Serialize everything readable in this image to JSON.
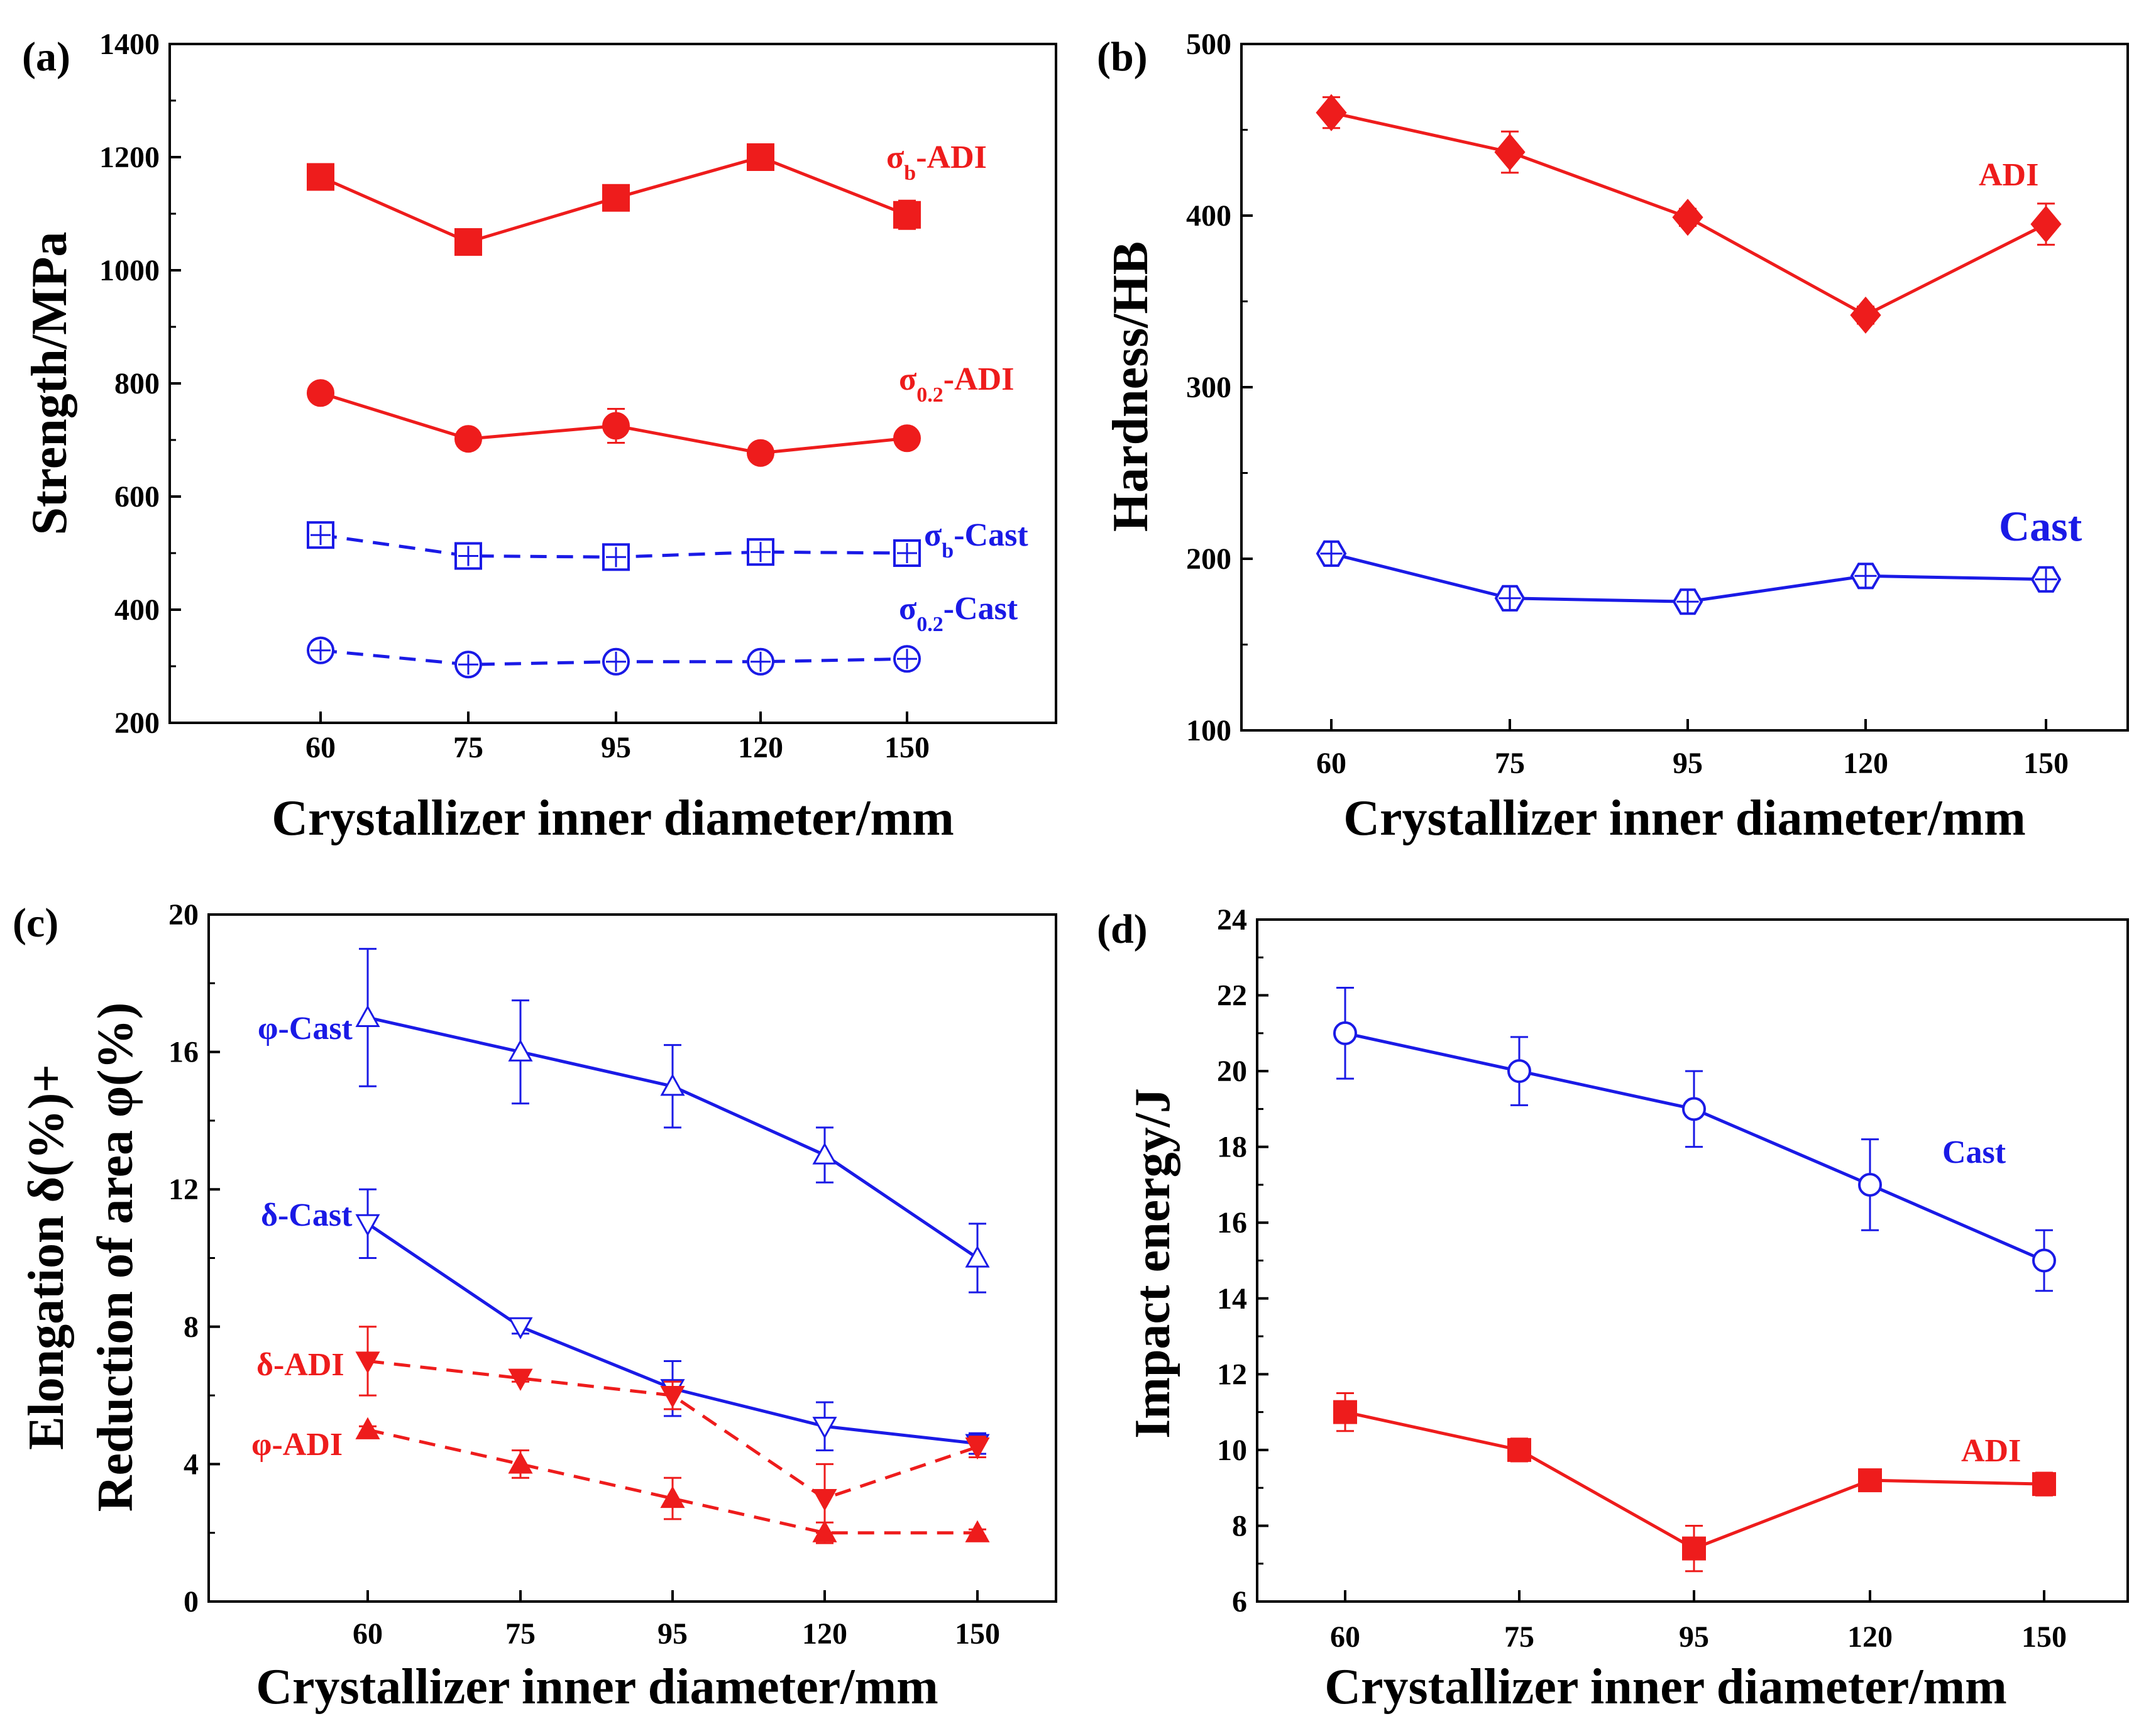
{
  "colors": {
    "adi": "#ee1c1c",
    "cast": "#1a1ae6",
    "axis": "#000000"
  },
  "chart_data": [
    {
      "panel_label": "(a)",
      "type": "line",
      "categories": [
        "60",
        "75",
        "95",
        "120",
        "150"
      ],
      "xlabel": "Crystallizer inner diameter/mm",
      "ylabel": "Strength/MPa",
      "ylim": [
        200,
        1400
      ],
      "yticks": [
        "200",
        "400",
        "600",
        "800",
        "1000",
        "1200",
        "1400"
      ],
      "series": [
        {
          "label": "σb-ADI",
          "main": "σ",
          "sub": "b",
          "suffix": "-ADI",
          "material": "adi",
          "marker": "square-filled",
          "dash": false,
          "values": [
            1165,
            1050,
            1128,
            1200,
            1098
          ],
          "errors": [
            15,
            15,
            15,
            20,
            25
          ]
        },
        {
          "label": "σ0.2-ADI",
          "main": "σ",
          "sub": "0.2",
          "suffix": "-ADI",
          "material": "adi",
          "marker": "circle-filled",
          "dash": false,
          "values": [
            783,
            702,
            725,
            677,
            703
          ],
          "errors": [
            12,
            15,
            30,
            10,
            10
          ]
        },
        {
          "label": "σb-Cast",
          "main": "σ",
          "sub": "b",
          "suffix": "-Cast",
          "material": "cast",
          "marker": "square-plus",
          "dash": true,
          "values": [
            532,
            495,
            493,
            502,
            500
          ],
          "errors": [
            0,
            0,
            0,
            0,
            0
          ]
        },
        {
          "label": "σ0.2-Cast",
          "main": "σ",
          "sub": "0.2",
          "suffix": "-Cast",
          "material": "cast",
          "marker": "circle-plus",
          "dash": true,
          "values": [
            328,
            303,
            308,
            308,
            313
          ],
          "errors": [
            0,
            0,
            0,
            0,
            0
          ]
        }
      ]
    },
    {
      "panel_label": "(b)",
      "type": "line",
      "categories": [
        "60",
        "75",
        "95",
        "120",
        "150"
      ],
      "xlabel": "Crystallizer inner diameter/mm",
      "ylabel": "Hardness/HB",
      "ylim": [
        100,
        500
      ],
      "yticks": [
        "100",
        "200",
        "300",
        "400",
        "500"
      ],
      "series": [
        {
          "label": "ADI",
          "main": "ADI",
          "sub": "",
          "suffix": "",
          "material": "adi",
          "marker": "diamond-filled",
          "dash": false,
          "values": [
            460,
            437,
            399,
            342,
            395
          ],
          "errors": [
            9,
            12,
            5,
            5,
            12
          ]
        },
        {
          "label": "Cast",
          "main": "Cast",
          "sub": "",
          "suffix": "",
          "material": "cast",
          "marker": "hexagon-plus",
          "dash": false,
          "values": [
            203,
            177,
            175,
            190,
            188
          ],
          "errors": [
            6,
            5,
            5,
            5,
            5
          ]
        }
      ]
    },
    {
      "panel_label": "(c)",
      "type": "line",
      "categories": [
        "60",
        "75",
        "95",
        "120",
        "150"
      ],
      "xlabel": "Crystallizer inner diameter/mm",
      "ylabel": "Elongation δ(%)+",
      "ylabel2": "Reduction of area φ(%)",
      "ylim": [
        0,
        20
      ],
      "yticks": [
        "0",
        "4",
        "8",
        "12",
        "16",
        "20"
      ],
      "series": [
        {
          "label": "φ-Cast",
          "main": "φ-Cast",
          "sub": "",
          "suffix": "",
          "material": "cast",
          "marker": "triangle-up-open",
          "dash": false,
          "values": [
            17,
            16,
            15,
            13,
            10
          ],
          "errors": [
            2,
            1.5,
            1.2,
            0.8,
            1
          ]
        },
        {
          "label": "δ-Cast",
          "main": "δ-Cast",
          "sub": "",
          "suffix": "",
          "material": "cast",
          "marker": "triangle-down-open",
          "dash": false,
          "values": [
            11,
            8,
            6.2,
            5.1,
            4.6
          ],
          "errors": [
            1,
            0.2,
            0.8,
            0.7,
            0.3
          ]
        },
        {
          "label": "δ-ADI",
          "main": "δ-ADI",
          "sub": "",
          "suffix": "",
          "material": "adi",
          "marker": "triangle-down-filled",
          "dash": true,
          "values": [
            7,
            6.5,
            6,
            3,
            4.5
          ],
          "errors": [
            1,
            0.1,
            0.4,
            1,
            0.3
          ]
        },
        {
          "label": "φ-ADI",
          "main": "φ-ADI",
          "sub": "",
          "suffix": "",
          "material": "adi",
          "marker": "triangle-up-filled",
          "dash": true,
          "values": [
            5,
            4,
            3,
            2,
            2
          ],
          "errors": [
            0.1,
            0.4,
            0.6,
            0.3,
            0.1
          ]
        }
      ]
    },
    {
      "panel_label": "(d)",
      "type": "line",
      "categories": [
        "60",
        "75",
        "95",
        "120",
        "150"
      ],
      "xlabel": "Crystallizer inner diameter/mm",
      "ylabel": "Impact energy/J",
      "ylim": [
        6,
        24
      ],
      "yticks": [
        "6",
        "8",
        "10",
        "12",
        "14",
        "16",
        "18",
        "20",
        "22",
        "24"
      ],
      "series": [
        {
          "label": "Cast",
          "main": "Cast",
          "sub": "",
          "suffix": "",
          "material": "cast",
          "marker": "circle-open",
          "dash": false,
          "values": [
            21,
            20,
            19,
            17,
            15
          ],
          "errors": [
            1.2,
            0.9,
            1,
            1.2,
            0.8
          ]
        },
        {
          "label": "ADI",
          "main": "ADI",
          "sub": "",
          "suffix": "",
          "material": "adi",
          "marker": "square-filled",
          "dash": false,
          "values": [
            11,
            10,
            7.4,
            9.2,
            9.1
          ],
          "errors": [
            0.5,
            0.3,
            0.6,
            0.1,
            0.3
          ]
        }
      ]
    }
  ]
}
